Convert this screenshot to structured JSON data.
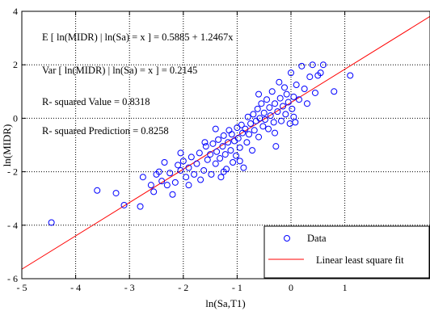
{
  "chart_data": {
    "type": "scatter",
    "xlabel": "ln(Sa,T1)",
    "ylabel": "ln(MIDR)",
    "xlim": [
      -5,
      2
    ],
    "ylim": [
      -6,
      4
    ],
    "x_ticks": [
      "- 5",
      "- 4",
      "- 3",
      "- 2",
      "- 1",
      "0",
      "1"
    ],
    "y_ticks": [
      "4",
      "2",
      "0",
      "- 2",
      "- 4",
      "- 6"
    ],
    "grid": "dotted",
    "legend_position": "bottom-right",
    "annotations": [
      "E [ ln(MIDR) | ln(Sa) = x ] = 0.5885 + 1.2467x",
      "Var [ ln(MIDR) | ln(Sa) = x ] = 0.2145",
      "R- squared Value = 0.8318",
      "R- squared Prediction = 0.8258"
    ],
    "colors": {
      "data": "#0000ff",
      "fit": "#ff0000",
      "axis": "#000000"
    },
    "series": [
      {
        "name": "Data",
        "marker": "circle",
        "points": [
          [
            -4.45,
            -3.9
          ],
          [
            -3.6,
            -2.7
          ],
          [
            -3.25,
            -2.8
          ],
          [
            -3.1,
            -3.25
          ],
          [
            -2.8,
            -3.3
          ],
          [
            -2.75,
            -2.2
          ],
          [
            -2.6,
            -2.5
          ],
          [
            -2.55,
            -2.75
          ],
          [
            -2.5,
            -2.1
          ],
          [
            -2.45,
            -2.0
          ],
          [
            -2.4,
            -2.35
          ],
          [
            -2.35,
            -1.65
          ],
          [
            -2.3,
            -2.5
          ],
          [
            -2.25,
            -2.05
          ],
          [
            -2.2,
            -2.85
          ],
          [
            -2.15,
            -2.4
          ],
          [
            -2.1,
            -1.75
          ],
          [
            -2.05,
            -1.95
          ],
          [
            -2.0,
            -1.6
          ],
          [
            -1.95,
            -2.2
          ],
          [
            -1.9,
            -1.85
          ],
          [
            -1.85,
            -1.45
          ],
          [
            -1.8,
            -2.1
          ],
          [
            -1.75,
            -1.7
          ],
          [
            -1.7,
            -1.3
          ],
          [
            -1.68,
            -2.3
          ],
          [
            -1.62,
            -1.95
          ],
          [
            -1.58,
            -1.05
          ],
          [
            -1.55,
            -1.55
          ],
          [
            -1.5,
            -1.35
          ],
          [
            -1.48,
            -2.1
          ],
          [
            -1.45,
            -0.95
          ],
          [
            -1.4,
            -1.7
          ],
          [
            -1.38,
            -1.25
          ],
          [
            -1.35,
            -0.8
          ],
          [
            -1.32,
            -1.5
          ],
          [
            -1.3,
            -2.2
          ],
          [
            -1.27,
            -1.05
          ],
          [
            -1.25,
            -0.65
          ],
          [
            -1.22,
            -1.35
          ],
          [
            -1.2,
            -1.9
          ],
          [
            -1.17,
            -0.9
          ],
          [
            -1.15,
            -0.45
          ],
          [
            -1.12,
            -1.2
          ],
          [
            -1.1,
            -0.6
          ],
          [
            -1.08,
            -1.65
          ],
          [
            -1.05,
            -0.85
          ],
          [
            -1.02,
            -1.4
          ],
          [
            -1.0,
            -0.35
          ],
          [
            -0.98,
            -0.75
          ],
          [
            -0.95,
            -1.1
          ],
          [
            -0.92,
            -0.25
          ],
          [
            -0.9,
            -0.55
          ],
          [
            -0.88,
            -1.85
          ],
          [
            -0.85,
            -0.4
          ],
          [
            -0.82,
            -0.9
          ],
          [
            -0.8,
            0.05
          ],
          [
            -0.78,
            -0.6
          ],
          [
            -0.75,
            -0.2
          ],
          [
            -0.72,
            -1.2
          ],
          [
            -0.7,
            0.15
          ],
          [
            -0.68,
            -0.45
          ],
          [
            -0.65,
            -0.1
          ],
          [
            -0.62,
            0.35
          ],
          [
            -0.6,
            -0.7
          ],
          [
            -0.58,
            0.0
          ],
          [
            -0.55,
            0.55
          ],
          [
            -0.52,
            -0.3
          ],
          [
            -0.5,
            0.2
          ],
          [
            -0.48,
            -0.05
          ],
          [
            -0.45,
            0.7
          ],
          [
            -0.42,
            -0.4
          ],
          [
            -0.4,
            0.4
          ],
          [
            -0.38,
            0.1
          ],
          [
            -0.35,
            1.0
          ],
          [
            -0.32,
            -0.15
          ],
          [
            -0.3,
            0.55
          ],
          [
            -0.28,
            -1.05
          ],
          [
            -0.25,
            0.25
          ],
          [
            -0.22,
            1.35
          ],
          [
            -0.2,
            0.75
          ],
          [
            -0.18,
            -0.1
          ],
          [
            -0.15,
            0.45
          ],
          [
            -0.12,
            1.15
          ],
          [
            -0.1,
            0.15
          ],
          [
            -0.08,
            0.9
          ],
          [
            -0.05,
            0.6
          ],
          [
            -0.02,
            -0.2
          ],
          [
            0.0,
            1.7
          ],
          [
            0.02,
            0.35
          ],
          [
            0.05,
            0.8
          ],
          [
            0.08,
            -0.15
          ],
          [
            0.1,
            1.25
          ],
          [
            0.15,
            0.7
          ],
          [
            0.2,
            1.95
          ],
          [
            0.25,
            1.1
          ],
          [
            0.3,
            0.55
          ],
          [
            0.35,
            1.55
          ],
          [
            0.4,
            2.0
          ],
          [
            0.45,
            0.95
          ],
          [
            0.5,
            1.6
          ],
          [
            0.55,
            1.7
          ],
          [
            0.6,
            2.0
          ],
          [
            0.8,
            1.0
          ],
          [
            1.1,
            1.6
          ],
          [
            -1.6,
            -0.9
          ],
          [
            -1.9,
            -2.5
          ],
          [
            -1.4,
            -0.4
          ],
          [
            -0.95,
            -1.6
          ],
          [
            -0.6,
            0.9
          ],
          [
            -0.3,
            -0.55
          ],
          [
            0.05,
            0.05
          ],
          [
            -2.05,
            -1.3
          ],
          [
            -1.25,
            -2.0
          ]
        ]
      },
      {
        "name": "Linear least square fit",
        "intercept": 0.5885,
        "slope": 1.2467
      }
    ]
  }
}
